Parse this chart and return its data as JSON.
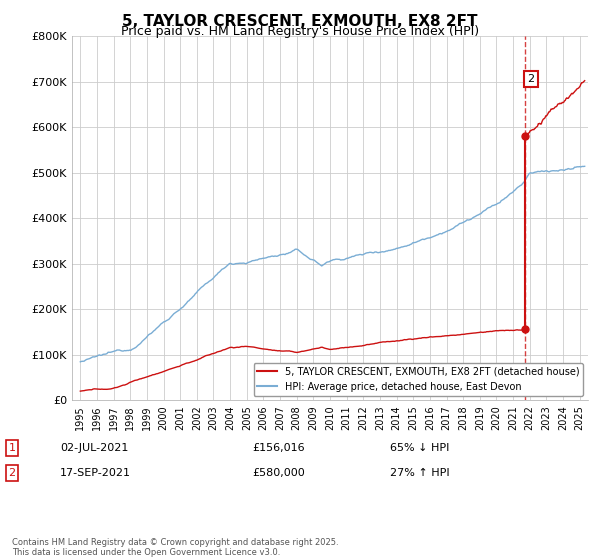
{
  "title": "5, TAYLOR CRESCENT, EXMOUTH, EX8 2FT",
  "subtitle": "Price paid vs. HM Land Registry's House Price Index (HPI)",
  "title_fontsize": 11,
  "subtitle_fontsize": 9,
  "ylabel_ticks": [
    "£0",
    "£100K",
    "£200K",
    "£300K",
    "£400K",
    "£500K",
    "£600K",
    "£700K",
    "£800K"
  ],
  "ytick_values": [
    0,
    100000,
    200000,
    300000,
    400000,
    500000,
    600000,
    700000,
    800000
  ],
  "ylim": [
    0,
    800000
  ],
  "xlim_start": 1994.5,
  "xlim_end": 2025.5,
  "xtick_years": [
    1995,
    1996,
    1997,
    1998,
    1999,
    2000,
    2001,
    2002,
    2003,
    2004,
    2005,
    2006,
    2007,
    2008,
    2009,
    2010,
    2011,
    2012,
    2013,
    2014,
    2015,
    2016,
    2017,
    2018,
    2019,
    2020,
    2021,
    2022,
    2023,
    2024,
    2025
  ],
  "hpi_color": "#7aadd4",
  "price_color": "#cc1111",
  "annotation_box_color": "#cc1111",
  "background_color": "#ffffff",
  "grid_color": "#cccccc",
  "legend_label_price": "5, TAYLOR CRESCENT, EXMOUTH, EX8 2FT (detached house)",
  "legend_label_hpi": "HPI: Average price, detached house, East Devon",
  "annotation1_label": "1",
  "annotation1_date": "02-JUL-2021",
  "annotation1_price": "£156,016",
  "annotation1_pct": "65% ↓ HPI",
  "annotation2_label": "2",
  "annotation2_date": "17-SEP-2021",
  "annotation2_price": "£580,000",
  "annotation2_pct": "27% ↑ HPI",
  "footer": "Contains HM Land Registry data © Crown copyright and database right 2025.\nThis data is licensed under the Open Government Licence v3.0.",
  "sale1_year": 2021.5,
  "sale1_price": 156016,
  "sale2_year": 2021.72,
  "sale2_price": 580000
}
